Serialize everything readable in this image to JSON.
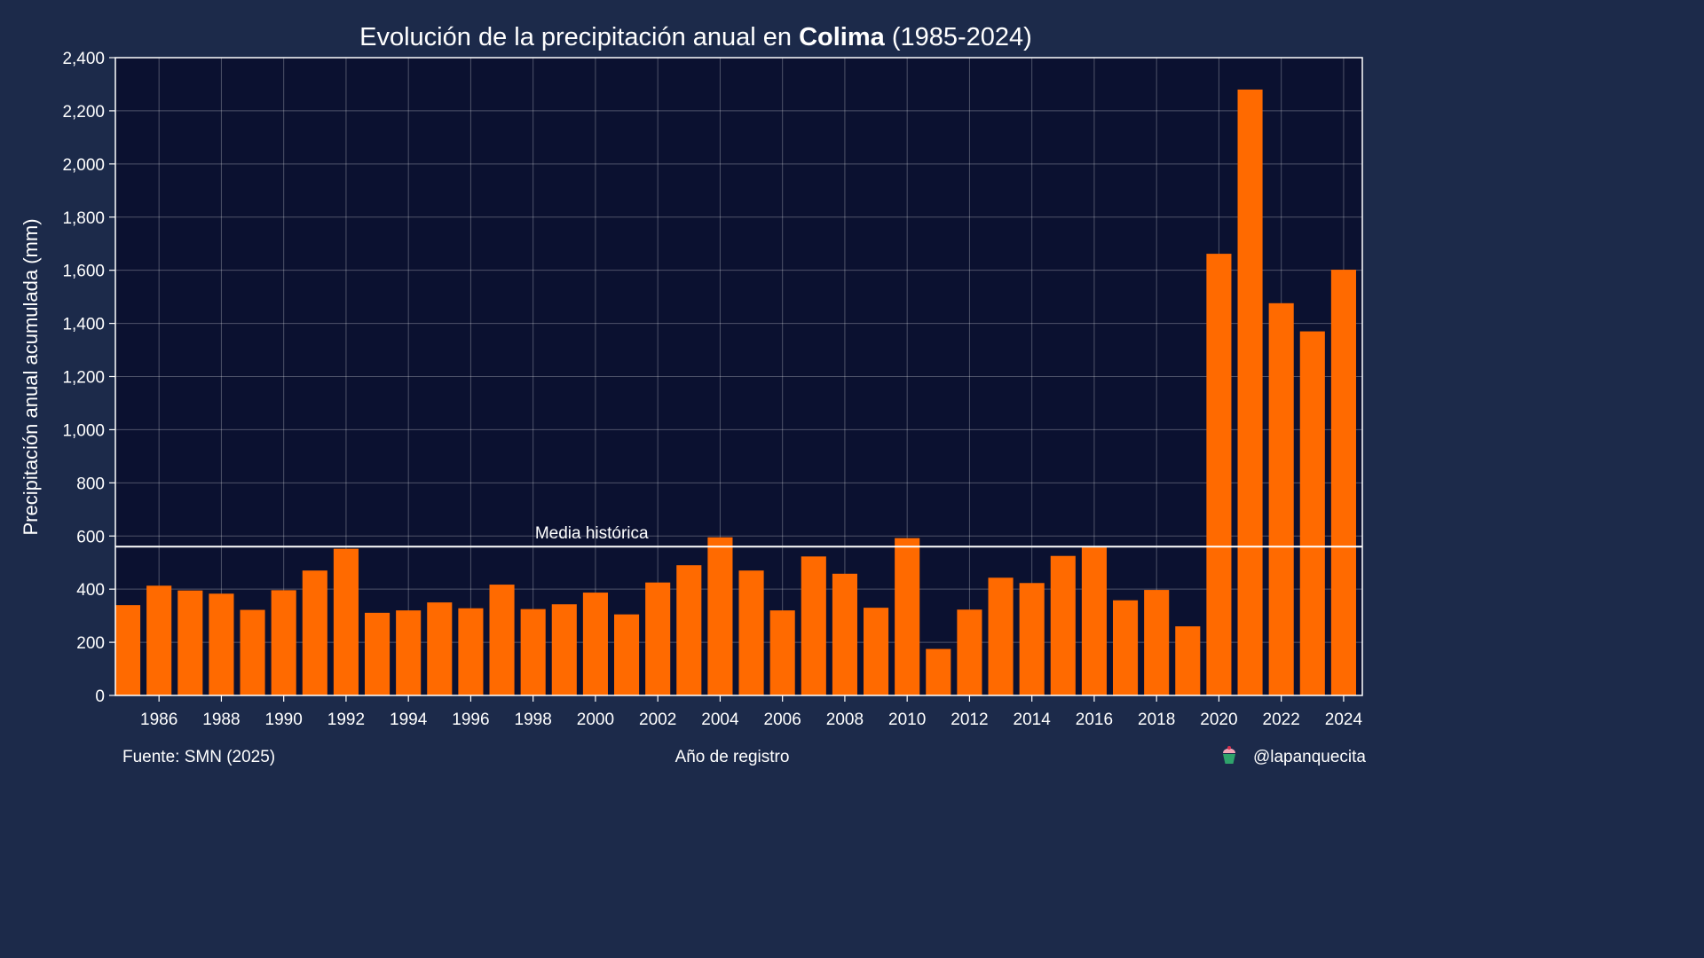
{
  "chart_data": {
    "type": "bar",
    "title": {
      "prefix": "Evolución de la precipitación anual en ",
      "highlight": "Colima",
      "suffix": " (1985-2024)"
    },
    "xlabel": "Año de registro",
    "ylabel": "Precipitación anual acumulada (mm)",
    "ylim": [
      0,
      2400
    ],
    "yticks": [
      0,
      200,
      400,
      600,
      800,
      1000,
      1200,
      1400,
      1600,
      1800,
      2000,
      2200,
      2400
    ],
    "ytick_labels": [
      "0",
      "200",
      "400",
      "600",
      "800",
      "1,000",
      "1,200",
      "1,400",
      "1,600",
      "1,800",
      "2,000",
      "2,200",
      "2,400"
    ],
    "xticks": [
      1986,
      1988,
      1990,
      1992,
      1994,
      1996,
      1998,
      2000,
      2002,
      2004,
      2006,
      2008,
      2010,
      2012,
      2014,
      2016,
      2018,
      2020,
      2022,
      2024
    ],
    "xtick_labels": [
      "1986",
      "1988",
      "1990",
      "1992",
      "1994",
      "1996",
      "1998",
      "2000",
      "2002",
      "2004",
      "2006",
      "2008",
      "2010",
      "2012",
      "2014",
      "2016",
      "2018",
      "2020",
      "2022",
      "2024"
    ],
    "grid": true,
    "categories": [
      1985,
      1986,
      1987,
      1988,
      1989,
      1990,
      1991,
      1992,
      1993,
      1994,
      1995,
      1996,
      1997,
      1998,
      1999,
      2000,
      2001,
      2002,
      2003,
      2004,
      2005,
      2006,
      2007,
      2008,
      2009,
      2010,
      2011,
      2012,
      2013,
      2014,
      2015,
      2016,
      2017,
      2018,
      2019,
      2020,
      2021,
      2022,
      2023,
      2024
    ],
    "values": [
      340,
      413,
      395,
      383,
      322,
      396,
      470,
      552,
      311,
      320,
      350,
      328,
      417,
      325,
      343,
      387,
      305,
      425,
      490,
      595,
      470,
      320,
      523,
      458,
      330,
      592,
      175,
      323,
      443,
      423,
      525,
      557,
      358,
      397,
      260,
      1662,
      2280,
      1476,
      1370,
      1602
    ],
    "reference_line": {
      "value": 560,
      "label": "Media histórica"
    },
    "bar_color": "#ff6a00",
    "plot_background": "#0b1130",
    "figure_background": "#1c2a4a",
    "reference_color": "#ffffff"
  },
  "footer": {
    "source": "Fuente: SMN (2025)",
    "credit": "@lapanquecita"
  }
}
